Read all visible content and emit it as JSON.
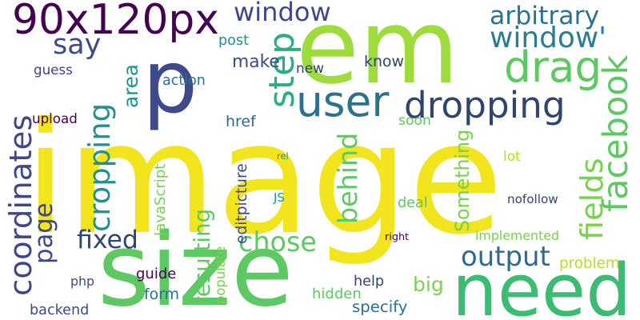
{
  "words": [
    {
      "text": "image",
      "color": "#f2e41d"
    },
    {
      "text": "em",
      "color": "#9ddc3c"
    },
    {
      "text": "p",
      "color": "#3e4a89"
    },
    {
      "text": "size",
      "color": "#5ec962"
    },
    {
      "text": "need",
      "color": "#3cbb75"
    },
    {
      "text": "90x120px",
      "color": "#440154"
    },
    {
      "text": "user",
      "color": "#2c728e"
    },
    {
      "text": "dropping",
      "color": "#31446b"
    },
    {
      "text": "drag",
      "color": "#5ec962"
    },
    {
      "text": "coordinates",
      "color": "#3f4788"
    },
    {
      "text": "cropping",
      "color": "#21918c"
    },
    {
      "text": "step",
      "color": "#29af7f"
    },
    {
      "text": "facebook",
      "color": "#5ec962"
    },
    {
      "text": "fields",
      "color": "#7ad151"
    },
    {
      "text": "window",
      "color": "#3f4788"
    },
    {
      "text": "arbitrary",
      "color": "#2c728e"
    },
    {
      "text": "window'",
      "color": "#287d8e"
    },
    {
      "text": "say",
      "color": "#3e4a89"
    },
    {
      "text": "area",
      "color": "#21918c"
    },
    {
      "text": "page",
      "color": "#3f4788"
    },
    {
      "text": "fixed",
      "color": "#31446b"
    },
    {
      "text": "chose",
      "color": "#5ec962"
    },
    {
      "text": "output",
      "color": "#31688e"
    },
    {
      "text": "behind",
      "color": "#5ec962"
    },
    {
      "text": "big",
      "color": "#7ad151"
    },
    {
      "text": "specify",
      "color": "#2c728e"
    },
    {
      "text": "resulting",
      "color": "#5ec962"
    },
    {
      "text": "Something",
      "color": "#7ad151"
    },
    {
      "text": "post",
      "color": "#21918c"
    },
    {
      "text": "make",
      "color": "#3e4a89"
    },
    {
      "text": "new",
      "color": "#31446b"
    },
    {
      "text": "know",
      "color": "#31446b"
    },
    {
      "text": "guess",
      "color": "#433e85"
    },
    {
      "text": "action",
      "color": "#2c728e"
    },
    {
      "text": "upload",
      "color": "#440154"
    },
    {
      "text": "href",
      "color": "#31688e"
    },
    {
      "text": "soon",
      "color": "#5ec962"
    },
    {
      "text": "editpicture",
      "color": "#3e4a89"
    },
    {
      "text": "JavaScript",
      "color": "#7ad151"
    },
    {
      "text": "rel",
      "color": "#21918c"
    },
    {
      "text": "lot",
      "color": "#b5de2b"
    },
    {
      "text": "JS",
      "color": "#21918c"
    },
    {
      "text": "deal",
      "color": "#5ec962"
    },
    {
      "text": "nofollow",
      "color": "#31446b"
    },
    {
      "text": "right",
      "color": "#440154"
    },
    {
      "text": "implemented",
      "color": "#7ad151"
    },
    {
      "text": "problem",
      "color": "#b5de2b"
    },
    {
      "text": "php",
      "color": "#3e4a89"
    },
    {
      "text": "guide",
      "color": "#440154"
    },
    {
      "text": "populate",
      "color": "#7ad151"
    },
    {
      "text": "help",
      "color": "#31446b"
    },
    {
      "text": "hidden",
      "color": "#5ec962"
    },
    {
      "text": "backend",
      "color": "#3e4a89"
    },
    {
      "text": "form",
      "color": "#2c728e"
    }
  ]
}
